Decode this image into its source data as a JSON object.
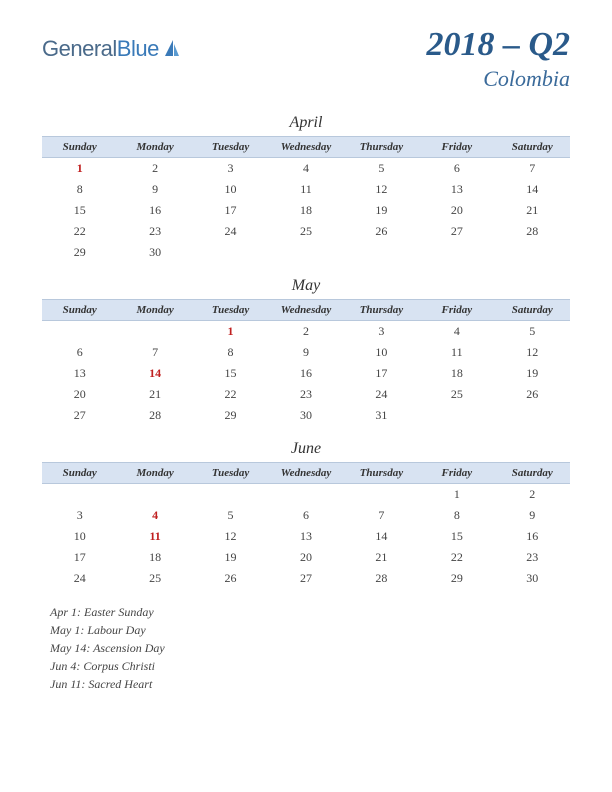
{
  "logo": {
    "general": "General",
    "blue": "Blue"
  },
  "title": {
    "main": "2018 – Q2",
    "country": "Colombia"
  },
  "daynames": [
    "Sunday",
    "Monday",
    "Tuesday",
    "Wednesday",
    "Thursday",
    "Friday",
    "Saturday"
  ],
  "months": [
    {
      "name": "April",
      "weeks": [
        [
          {
            "d": "1",
            "h": true
          },
          {
            "d": "2"
          },
          {
            "d": "3"
          },
          {
            "d": "4"
          },
          {
            "d": "5"
          },
          {
            "d": "6"
          },
          {
            "d": "7"
          }
        ],
        [
          {
            "d": "8"
          },
          {
            "d": "9"
          },
          {
            "d": "10"
          },
          {
            "d": "11"
          },
          {
            "d": "12"
          },
          {
            "d": "13"
          },
          {
            "d": "14"
          }
        ],
        [
          {
            "d": "15"
          },
          {
            "d": "16"
          },
          {
            "d": "17"
          },
          {
            "d": "18"
          },
          {
            "d": "19"
          },
          {
            "d": "20"
          },
          {
            "d": "21"
          }
        ],
        [
          {
            "d": "22"
          },
          {
            "d": "23"
          },
          {
            "d": "24"
          },
          {
            "d": "25"
          },
          {
            "d": "26"
          },
          {
            "d": "27"
          },
          {
            "d": "28"
          }
        ],
        [
          {
            "d": "29"
          },
          {
            "d": "30"
          },
          {
            "d": ""
          },
          {
            "d": ""
          },
          {
            "d": ""
          },
          {
            "d": ""
          },
          {
            "d": ""
          }
        ]
      ]
    },
    {
      "name": "May",
      "weeks": [
        [
          {
            "d": ""
          },
          {
            "d": ""
          },
          {
            "d": "1",
            "h": true
          },
          {
            "d": "2"
          },
          {
            "d": "3"
          },
          {
            "d": "4"
          },
          {
            "d": "5"
          }
        ],
        [
          {
            "d": "6"
          },
          {
            "d": "7"
          },
          {
            "d": "8"
          },
          {
            "d": "9"
          },
          {
            "d": "10"
          },
          {
            "d": "11"
          },
          {
            "d": "12"
          }
        ],
        [
          {
            "d": "13"
          },
          {
            "d": "14",
            "h": true
          },
          {
            "d": "15"
          },
          {
            "d": "16"
          },
          {
            "d": "17"
          },
          {
            "d": "18"
          },
          {
            "d": "19"
          }
        ],
        [
          {
            "d": "20"
          },
          {
            "d": "21"
          },
          {
            "d": "22"
          },
          {
            "d": "23"
          },
          {
            "d": "24"
          },
          {
            "d": "25"
          },
          {
            "d": "26"
          }
        ],
        [
          {
            "d": "27"
          },
          {
            "d": "28"
          },
          {
            "d": "29"
          },
          {
            "d": "30"
          },
          {
            "d": "31"
          },
          {
            "d": ""
          },
          {
            "d": ""
          }
        ]
      ]
    },
    {
      "name": "June",
      "weeks": [
        [
          {
            "d": ""
          },
          {
            "d": ""
          },
          {
            "d": ""
          },
          {
            "d": ""
          },
          {
            "d": ""
          },
          {
            "d": "1"
          },
          {
            "d": "2"
          }
        ],
        [
          {
            "d": "3"
          },
          {
            "d": "4",
            "h": true
          },
          {
            "d": "5"
          },
          {
            "d": "6"
          },
          {
            "d": "7"
          },
          {
            "d": "8"
          },
          {
            "d": "9"
          }
        ],
        [
          {
            "d": "10"
          },
          {
            "d": "11",
            "h": true
          },
          {
            "d": "12"
          },
          {
            "d": "13"
          },
          {
            "d": "14"
          },
          {
            "d": "15"
          },
          {
            "d": "16"
          }
        ],
        [
          {
            "d": "17"
          },
          {
            "d": "18"
          },
          {
            "d": "19"
          },
          {
            "d": "20"
          },
          {
            "d": "21"
          },
          {
            "d": "22"
          },
          {
            "d": "23"
          }
        ],
        [
          {
            "d": "24"
          },
          {
            "d": "25"
          },
          {
            "d": "26"
          },
          {
            "d": "27"
          },
          {
            "d": "28"
          },
          {
            "d": "29"
          },
          {
            "d": "30"
          }
        ]
      ]
    }
  ],
  "holidays": [
    "Apr 1: Easter Sunday",
    "May 1: Labour Day",
    "May 14: Ascension Day",
    "Jun 4: Corpus Christi",
    "Jun 11: Sacred Heart"
  ],
  "colors": {
    "header_bg": "#d8e3f2",
    "title_color": "#2a5a8a",
    "holiday_color": "#c02020"
  }
}
